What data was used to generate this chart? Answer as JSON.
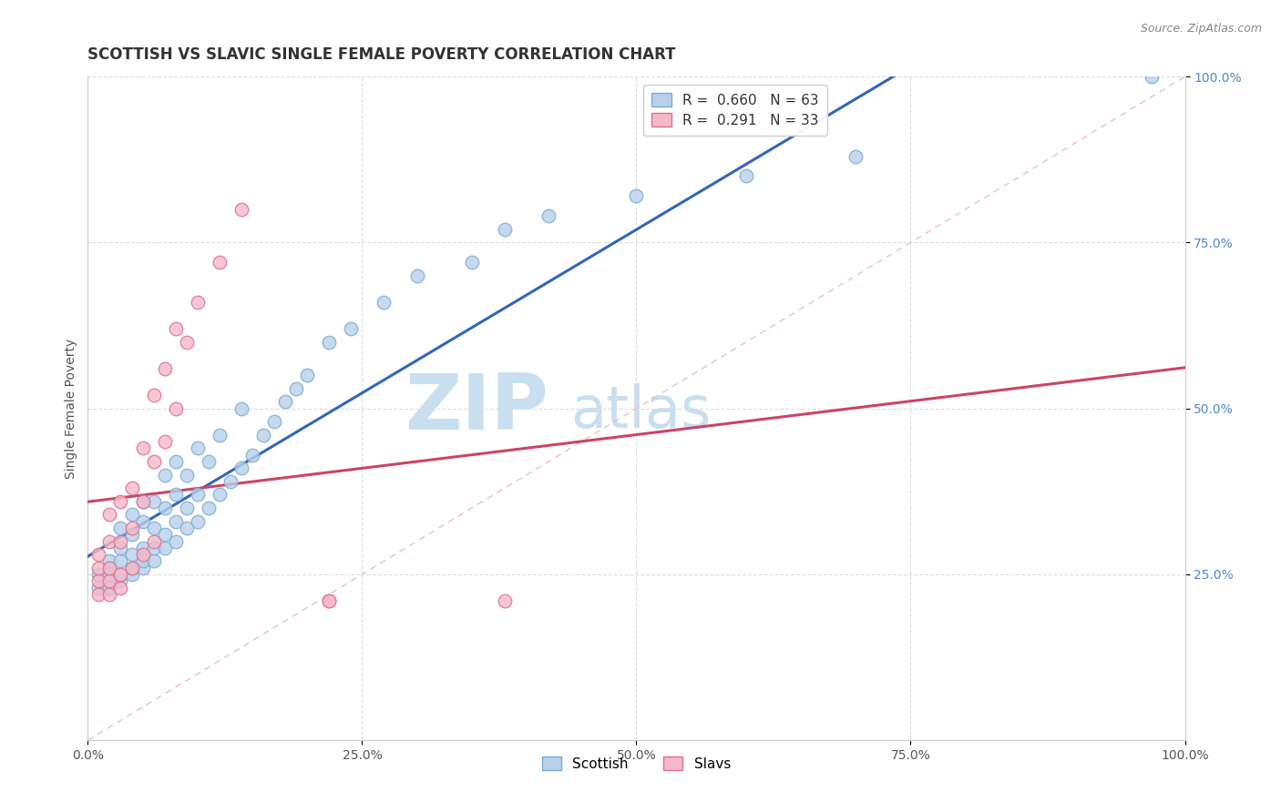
{
  "title": "SCOTTISH VS SLAVIC SINGLE FEMALE POVERTY CORRELATION CHART",
  "source": "Source: ZipAtlas.com",
  "ylabel": "Single Female Poverty",
  "xlim": [
    0.0,
    1.0
  ],
  "ylim": [
    0.0,
    1.0
  ],
  "xtick_labels": [
    "0.0%",
    "25.0%",
    "50.0%",
    "75.0%",
    "100.0%"
  ],
  "xtick_vals": [
    0.0,
    0.25,
    0.5,
    0.75,
    1.0
  ],
  "ytick_labels": [
    "25.0%",
    "50.0%",
    "75.0%",
    "100.0%"
  ],
  "ytick_vals": [
    0.25,
    0.5,
    0.75,
    1.0
  ],
  "scottish_color": "#b8d0ea",
  "slavic_color": "#f5b8c8",
  "scottish_edge": "#7aadd4",
  "slavic_edge": "#e07090",
  "trendline_scottish_color": "#3366bb",
  "trendline_slavic_color": "#cc4466",
  "diagonal_color": "#e8bbbb",
  "R_scottish": 0.66,
  "N_scottish": 63,
  "R_slavic": 0.291,
  "N_slavic": 33,
  "legend_label_scottish": "Scottish",
  "legend_label_slavic": "Slavs",
  "scottish_x": [
    0.01,
    0.01,
    0.02,
    0.02,
    0.02,
    0.02,
    0.03,
    0.03,
    0.03,
    0.03,
    0.03,
    0.04,
    0.04,
    0.04,
    0.04,
    0.04,
    0.05,
    0.05,
    0.05,
    0.05,
    0.05,
    0.06,
    0.06,
    0.06,
    0.06,
    0.07,
    0.07,
    0.07,
    0.07,
    0.08,
    0.08,
    0.08,
    0.08,
    0.09,
    0.09,
    0.09,
    0.1,
    0.1,
    0.1,
    0.11,
    0.11,
    0.12,
    0.12,
    0.13,
    0.14,
    0.14,
    0.15,
    0.16,
    0.17,
    0.18,
    0.19,
    0.2,
    0.22,
    0.24,
    0.27,
    0.3,
    0.35,
    0.38,
    0.42,
    0.5,
    0.6,
    0.7,
    0.97
  ],
  "scottish_y": [
    0.23,
    0.25,
    0.23,
    0.25,
    0.26,
    0.27,
    0.24,
    0.25,
    0.27,
    0.29,
    0.32,
    0.25,
    0.26,
    0.28,
    0.31,
    0.34,
    0.26,
    0.27,
    0.29,
    0.33,
    0.36,
    0.27,
    0.29,
    0.32,
    0.36,
    0.29,
    0.31,
    0.35,
    0.4,
    0.3,
    0.33,
    0.37,
    0.42,
    0.32,
    0.35,
    0.4,
    0.33,
    0.37,
    0.44,
    0.35,
    0.42,
    0.37,
    0.46,
    0.39,
    0.41,
    0.5,
    0.43,
    0.46,
    0.48,
    0.51,
    0.53,
    0.55,
    0.6,
    0.62,
    0.66,
    0.7,
    0.72,
    0.77,
    0.79,
    0.82,
    0.85,
    0.88,
    1.0
  ],
  "slavic_x": [
    0.01,
    0.01,
    0.01,
    0.01,
    0.02,
    0.02,
    0.02,
    0.02,
    0.02,
    0.03,
    0.03,
    0.03,
    0.03,
    0.04,
    0.04,
    0.04,
    0.05,
    0.05,
    0.05,
    0.06,
    0.06,
    0.06,
    0.07,
    0.07,
    0.08,
    0.08,
    0.09,
    0.1,
    0.12,
    0.14,
    0.22,
    0.22,
    0.38
  ],
  "slavic_y": [
    0.22,
    0.24,
    0.26,
    0.28,
    0.22,
    0.24,
    0.26,
    0.3,
    0.34,
    0.23,
    0.25,
    0.3,
    0.36,
    0.26,
    0.32,
    0.38,
    0.28,
    0.36,
    0.44,
    0.3,
    0.42,
    0.52,
    0.45,
    0.56,
    0.5,
    0.62,
    0.6,
    0.66,
    0.72,
    0.8,
    0.21,
    0.21,
    0.21
  ],
  "background_color": "#ffffff",
  "grid_color": "#dddddd",
  "watermark_zip": "ZIP",
  "watermark_atlas": "atlas",
  "watermark_color_zip": "#c8dff0",
  "watermark_color_atlas": "#c8dff0",
  "title_fontsize": 12,
  "axis_label_fontsize": 10,
  "tick_fontsize": 10,
  "legend_fontsize": 11,
  "source_fontsize": 9
}
